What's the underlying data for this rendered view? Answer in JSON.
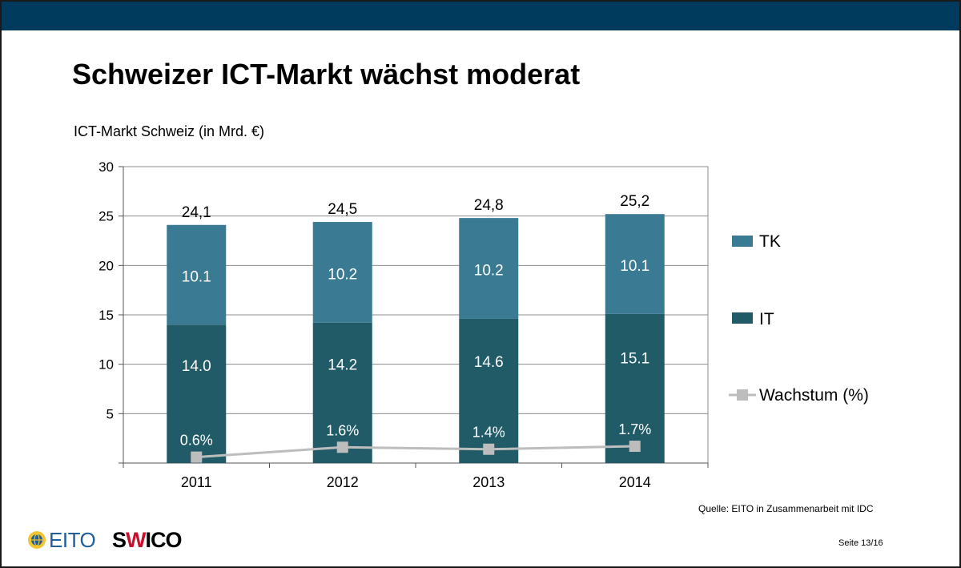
{
  "slide": {
    "title": "Schweizer ICT-Markt wächst moderat",
    "subtitle": "ICT-Markt Schweiz (in Mrd. €)",
    "source": "Quelle: EITO in Zusammenarbeit mit IDC",
    "page": "Seite 13/16",
    "logos": {
      "eito": "EITO",
      "swico_pre": "S",
      "swico_mid": "W",
      "swico_post": "ICO"
    }
  },
  "colors": {
    "header_bar": "#003a5d",
    "tk": "#3a7a93",
    "it": "#215b68",
    "growth": "#bdbdbd"
  },
  "chart_data": {
    "type": "bar",
    "stacked": true,
    "categories": [
      "2011",
      "2012",
      "2013",
      "2014"
    ],
    "series": [
      {
        "name": "IT",
        "values": [
          14.0,
          14.2,
          14.6,
          15.1
        ],
        "labels": [
          "14.0",
          "14.2",
          "14.6",
          "15.1"
        ],
        "color": "#215b68"
      },
      {
        "name": "TK",
        "values": [
          10.1,
          10.2,
          10.2,
          10.1
        ],
        "labels": [
          "10.1",
          "10.2",
          "10.2",
          "10.1"
        ],
        "color": "#3a7a93"
      }
    ],
    "totals": [
      24.1,
      24.5,
      24.8,
      25.2
    ],
    "total_labels": [
      "24,1",
      "24,5",
      "24,8",
      "25,2"
    ],
    "line_series": {
      "name": "Wachstum (%)",
      "type": "line",
      "values": [
        0.6,
        1.6,
        1.4,
        1.7
      ],
      "labels": [
        "0.6%",
        "1.6%",
        "1.4%",
        "1.7%"
      ],
      "color": "#bdbdbd"
    },
    "ylim": [
      0,
      30
    ],
    "yticks": [
      5,
      10,
      15,
      20,
      25,
      30
    ],
    "ytick_labels": [
      "5",
      "10",
      "15",
      "20",
      "25",
      "30"
    ],
    "legend": [
      "TK",
      "IT",
      "Wachstum (%)"
    ],
    "legend_position": "right",
    "grid": true
  }
}
